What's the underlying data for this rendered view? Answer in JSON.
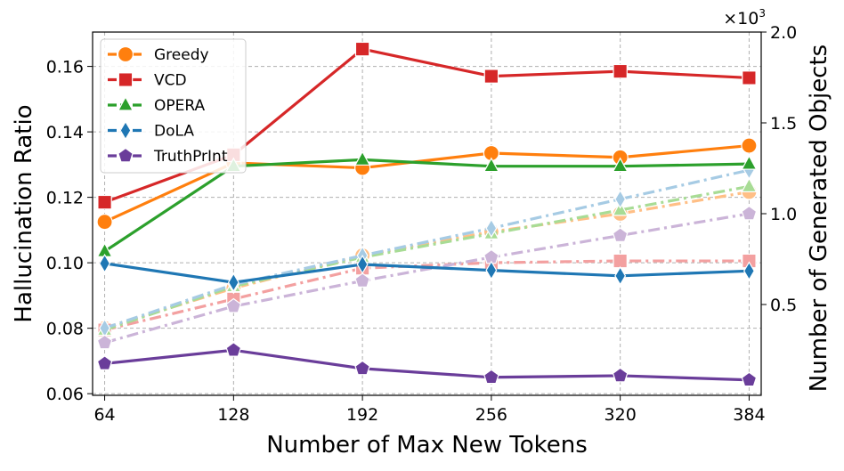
{
  "chart_data": {
    "type": "line",
    "xlabel": "Number of Max New Tokens",
    "ylabel": "Hallucination Ratio",
    "y2label": "Number of Generated Objects",
    "y2_multiplier": "×10",
    "y2_multiplier_exp": "3",
    "x": [
      64,
      128,
      192,
      256,
      320,
      384
    ],
    "xticks": [
      "64",
      "128",
      "192",
      "256",
      "320",
      "384"
    ],
    "ylim": [
      0.0595,
      0.1705
    ],
    "yticks": [
      "0.06",
      "0.08",
      "0.10",
      "0.12",
      "0.14",
      "0.16"
    ],
    "y2lim": [
      0.0,
      2.0
    ],
    "y2ticks": [
      "0.5",
      "1.0",
      "1.5",
      "2.0"
    ],
    "grid": true,
    "legend_position": "top-left",
    "series": [
      {
        "name": "Greedy",
        "color": "#ff7f0e",
        "faded_color": "#ffbf86",
        "marker": "circle",
        "values": [
          0.1125,
          0.1305,
          0.129,
          0.1335,
          0.1322,
          0.1358
        ],
        "objects": [
          0.37,
          0.59,
          0.77,
          0.9,
          1.0,
          1.12
        ]
      },
      {
        "name": "VCD",
        "color": "#d62728",
        "faded_color": "#f3a0a0",
        "marker": "square",
        "values": [
          0.1185,
          0.133,
          0.1653,
          0.157,
          0.1585,
          0.1565
        ],
        "objects": [
          0.36,
          0.53,
          0.7,
          0.73,
          0.74,
          0.74
        ]
      },
      {
        "name": "OPERA",
        "color": "#2ca02c",
        "faded_color": "#a8dc95",
        "marker": "triangle",
        "values": [
          0.1035,
          0.1295,
          0.1315,
          0.1295,
          0.1295,
          0.1302
        ],
        "objects": [
          0.36,
          0.6,
          0.76,
          0.89,
          1.02,
          1.15
        ]
      },
      {
        "name": "DoLA",
        "color": "#1f77b4",
        "faded_color": "#a6cbe4",
        "marker": "diamond",
        "values": [
          0.0998,
          0.094,
          0.0995,
          0.0977,
          0.096,
          0.0975
        ],
        "objects": [
          0.37,
          0.61,
          0.77,
          0.92,
          1.08,
          1.24
        ]
      },
      {
        "name": "TruthPrInt",
        "color": "#6a3d9a",
        "faded_color": "#cbb4d8",
        "marker": "pentagon",
        "values": [
          0.0692,
          0.0733,
          0.0677,
          0.065,
          0.0655,
          0.0642
        ],
        "objects": [
          0.29,
          0.49,
          0.63,
          0.76,
          0.88,
          1.0
        ]
      }
    ]
  }
}
